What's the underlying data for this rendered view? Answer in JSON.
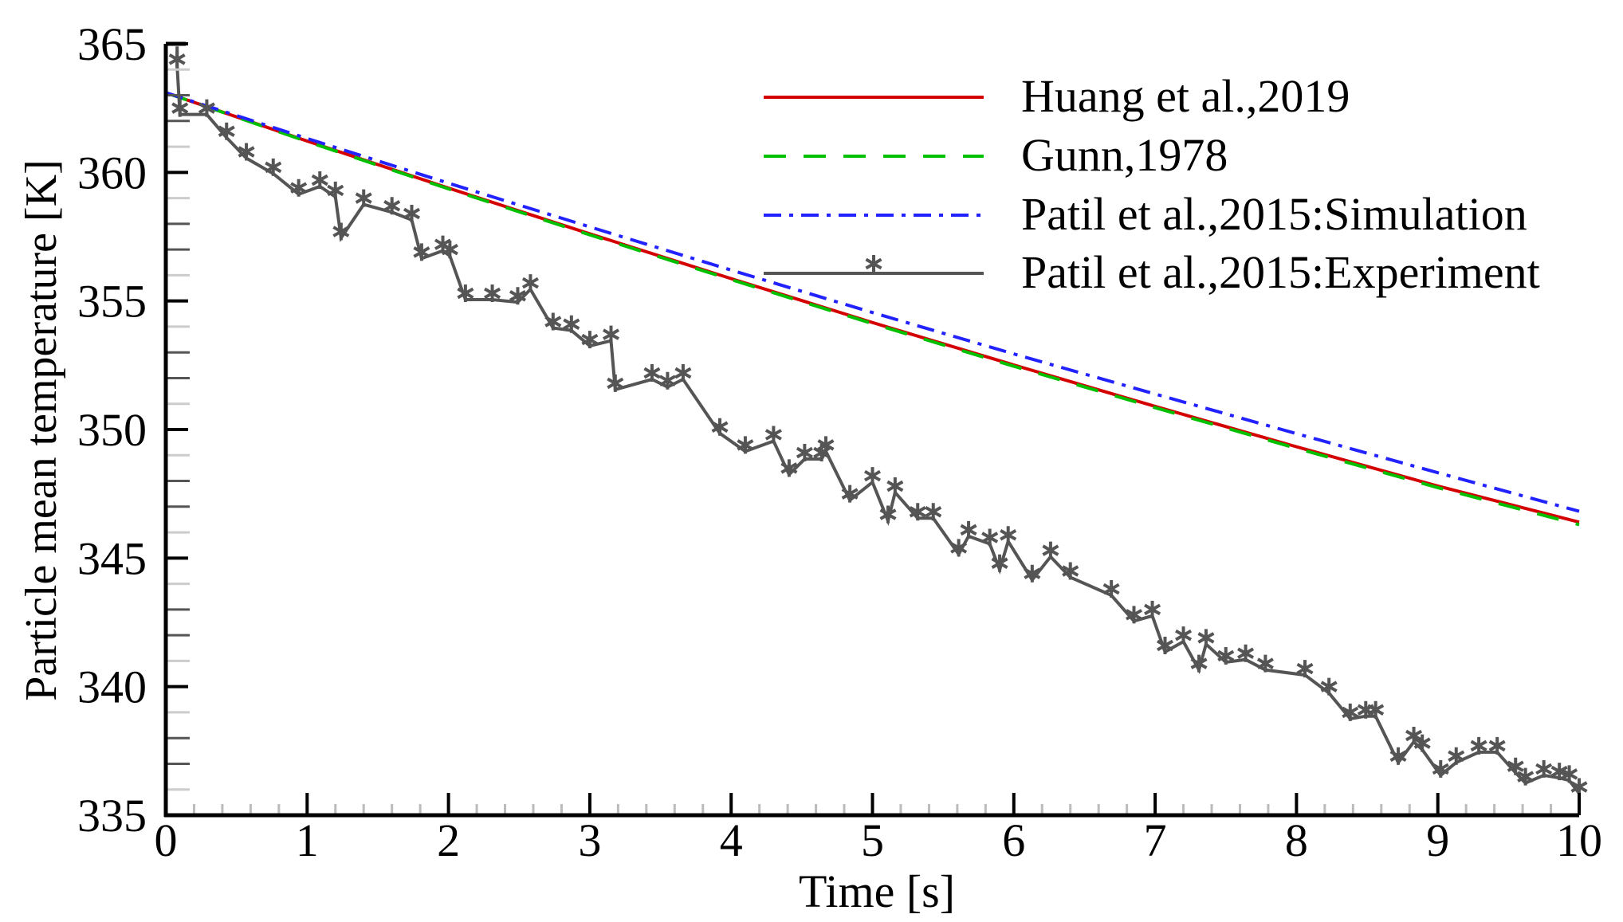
{
  "chart_data": {
    "type": "line",
    "title": "",
    "xlabel": "Time [s]",
    "ylabel": "Particle mean temperature [K]",
    "xlim": [
      0,
      10
    ],
    "ylim": [
      335,
      365
    ],
    "xticks": [
      "0",
      "1",
      "2",
      "3",
      "4",
      "5",
      "6",
      "7",
      "8",
      "9",
      "10"
    ],
    "yticks": [
      "335",
      "340",
      "345",
      "350",
      "355",
      "360",
      "365"
    ],
    "grid": false,
    "legend_position": "top-right",
    "series": [
      {
        "name": "Huang et al.,2019",
        "color": "#d40000",
        "style": "solid",
        "x": [
          0,
          1,
          2,
          3,
          4,
          5,
          6,
          7,
          8,
          9,
          10
        ],
        "y": [
          363.1,
          361.22,
          359.39,
          357.61,
          355.87,
          354.16,
          352.51,
          350.9,
          349.33,
          347.8,
          346.4
        ]
      },
      {
        "name": "Gunn,1978",
        "color": "#00c000",
        "style": "dashed",
        "x": [
          0,
          1,
          2,
          3,
          4,
          5,
          6,
          7,
          8,
          9,
          10
        ],
        "y": [
          363.1,
          361.2,
          359.36,
          357.57,
          355.83,
          354.12,
          352.46,
          350.85,
          349.27,
          347.74,
          346.3
        ]
      },
      {
        "name": "Patil et al.,2015:Simulation",
        "color": "#2222ff",
        "style": "dashdot",
        "x": [
          0,
          1,
          2,
          3,
          4,
          5,
          6,
          7,
          8,
          9,
          10
        ],
        "y": [
          363.1,
          361.32,
          359.58,
          357.88,
          356.2,
          354.55,
          352.94,
          351.38,
          349.84,
          348.32,
          346.82
        ]
      },
      {
        "name": "Patil et al.,2015:Experiment",
        "color": "#555555",
        "style": "solid-star",
        "x": [
          0.08,
          0.1,
          0.29,
          0.43,
          0.57,
          0.76,
          0.94,
          1.09,
          1.2,
          1.24,
          1.4,
          1.6,
          1.74,
          1.81,
          1.96,
          2.01,
          2.12,
          2.31,
          2.49,
          2.58,
          2.74,
          2.87,
          3.0,
          3.15,
          3.18,
          3.44,
          3.55,
          3.66,
          3.92,
          4.1,
          4.3,
          4.41,
          4.52,
          4.64,
          4.67,
          4.84,
          5.0,
          5.11,
          5.16,
          5.32,
          5.43,
          5.61,
          5.68,
          5.83,
          5.9,
          5.96,
          6.13,
          6.26,
          6.4,
          6.69,
          6.85,
          6.98,
          7.07,
          7.2,
          7.31,
          7.36,
          7.5,
          7.64,
          7.78,
          8.06,
          8.23,
          8.38,
          8.49,
          8.56,
          8.72,
          8.83,
          8.89,
          9.02,
          9.13,
          9.29,
          9.42,
          9.55,
          9.62,
          9.75,
          9.86,
          9.93,
          10.0
        ],
        "y": [
          364.4,
          362.5,
          362.5,
          361.6,
          360.8,
          360.2,
          359.4,
          359.7,
          359.3,
          357.7,
          359.0,
          358.7,
          358.4,
          356.9,
          357.2,
          357.0,
          355.3,
          355.3,
          355.2,
          355.7,
          354.2,
          354.1,
          353.5,
          353.7,
          351.8,
          352.2,
          351.9,
          352.2,
          350.1,
          349.4,
          349.8,
          348.5,
          349.1,
          349.1,
          349.4,
          347.5,
          348.2,
          346.7,
          347.8,
          346.8,
          346.8,
          345.4,
          346.1,
          345.8,
          344.8,
          345.9,
          344.4,
          345.3,
          344.5,
          343.8,
          342.8,
          343.0,
          341.6,
          342.0,
          340.9,
          341.9,
          341.2,
          341.3,
          340.9,
          340.7,
          340.0,
          339.0,
          339.1,
          339.1,
          337.3,
          338.1,
          337.8,
          336.8,
          337.3,
          337.7,
          337.7,
          336.9,
          336.5,
          336.8,
          336.7,
          336.6,
          336.1
        ]
      }
    ]
  }
}
